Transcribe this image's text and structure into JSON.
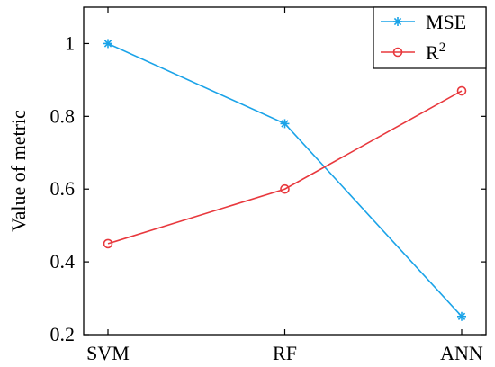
{
  "chart_data": {
    "type": "line",
    "categories": [
      "SVM",
      "RF",
      "ANN"
    ],
    "ylabel": "Value of metric",
    "xlabel": "",
    "title": "",
    "ylim": [
      0.2,
      1.1
    ],
    "yticks": [
      0.2,
      0.4,
      0.6,
      0.8,
      1
    ],
    "ytick_labels": [
      "0.2",
      "0.4",
      "0.6",
      "0.8",
      "1"
    ],
    "grid": false,
    "legend_position": "top-right",
    "series": [
      {
        "name": "MSE",
        "name_sup": "",
        "color": "#1aa3e8",
        "marker": "asterisk",
        "values": [
          1.0,
          0.78,
          0.25
        ]
      },
      {
        "name": "R",
        "name_sup": "2",
        "color": "#e8383d",
        "marker": "circle",
        "values": [
          0.45,
          0.6,
          0.87
        ]
      }
    ]
  }
}
